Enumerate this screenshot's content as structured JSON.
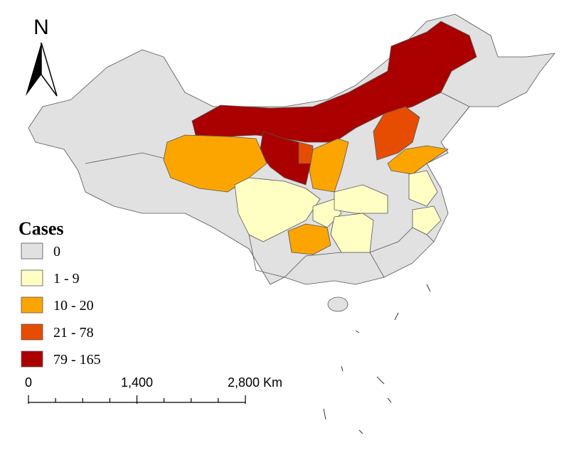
{
  "north_arrow": {
    "label": "N"
  },
  "legend": {
    "title": "Cases",
    "items": [
      {
        "label": "0",
        "color": "#e1e1e1"
      },
      {
        "label": "1 - 9",
        "color": "#ffffc4"
      },
      {
        "label": "10 - 20",
        "color": "#fca500"
      },
      {
        "label": "21 - 78",
        "color": "#e64d00"
      },
      {
        "label": "79 - 165",
        "color": "#ab0000"
      }
    ]
  },
  "scale_bar": {
    "labels": [
      "0",
      "1,400",
      "2,800 Km"
    ]
  }
}
